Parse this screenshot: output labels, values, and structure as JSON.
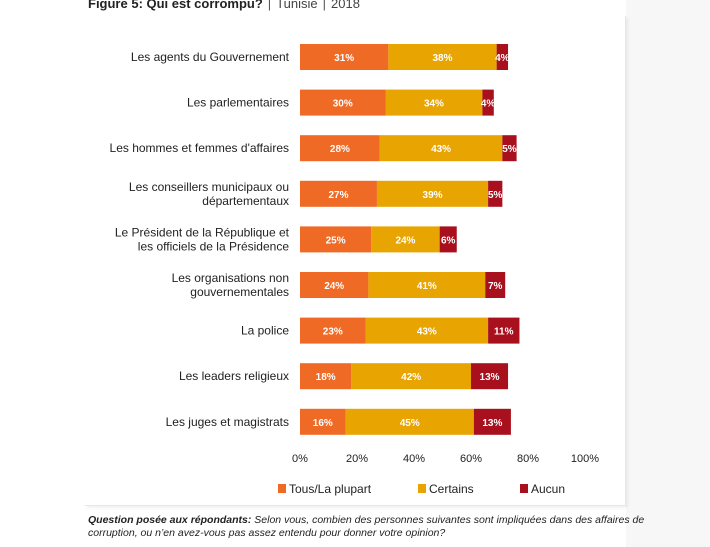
{
  "figure": {
    "title": "Figure 5: Qui est corrompu?",
    "country": "Tunisie",
    "year": "2018"
  },
  "chart_data": {
    "type": "bar",
    "orientation": "horizontal",
    "stacked": true,
    "categories": [
      [
        "Les agents du Gouvernement"
      ],
      [
        "Les parlementaires"
      ],
      [
        "Les hommes et femmes d'affaires"
      ],
      [
        "Les conseillers municipaux ou",
        "départementaux"
      ],
      [
        "Le Président de la République et",
        "les officiels de la Présidence"
      ],
      [
        "Les organisations non",
        "gouvernementales"
      ],
      [
        "La police"
      ],
      [
        "Les leaders religieux"
      ],
      [
        "Les juges et magistrats"
      ]
    ],
    "series": [
      {
        "name": "Tous/La plupart",
        "color": "#ef6a25",
        "values": [
          31,
          30,
          28,
          27,
          25,
          24,
          23,
          18,
          16
        ]
      },
      {
        "name": "Certains",
        "color": "#e8a400",
        "values": [
          38,
          34,
          43,
          39,
          24,
          41,
          43,
          42,
          45
        ]
      },
      {
        "name": "Aucun",
        "color": "#a8101d",
        "values": [
          4,
          4,
          5,
          5,
          6,
          7,
          11,
          13,
          13
        ]
      }
    ],
    "xlim": [
      0,
      100
    ],
    "xticks": [
      "0%",
      "20%",
      "40%",
      "60%",
      "80%",
      "100%"
    ],
    "grid": false,
    "legend_position": "bottom"
  },
  "footnote": {
    "label": "Question posée aux répondants:",
    "text": " Selon vous, combien des personnes suivantes sont impliquées dans des affaires de corruption, ou n’en avez-vous pas assez entendu pour donner votre opinion?"
  }
}
